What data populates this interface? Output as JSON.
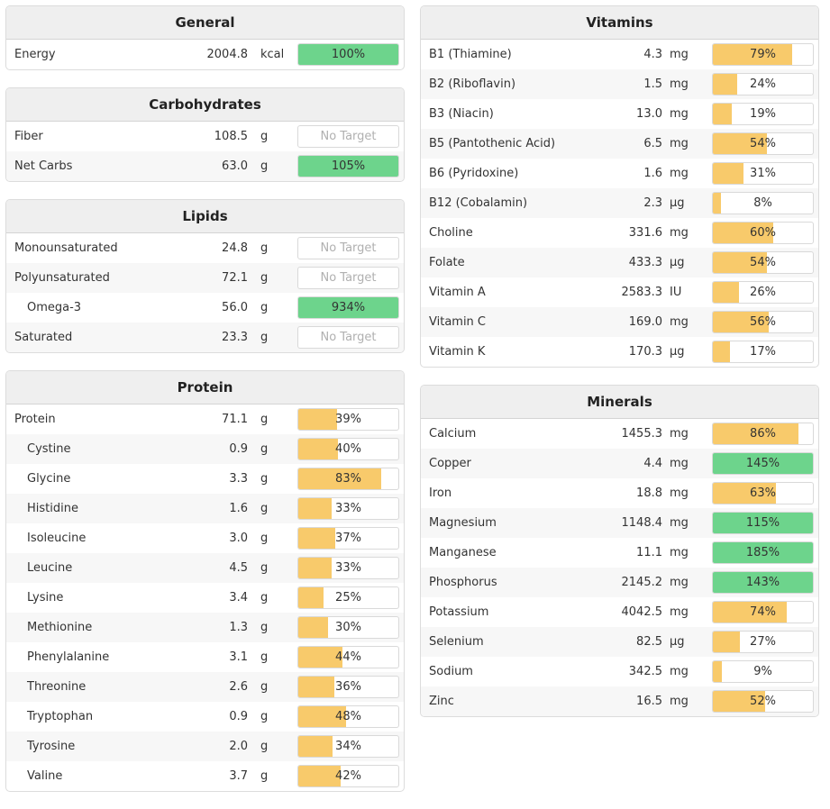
{
  "colors": {
    "partial": "#f8ca6b",
    "full": "#6dd48c"
  },
  "left_panels": [
    {
      "title": "General",
      "rows": [
        {
          "name": "Energy",
          "amount": "2004.8",
          "unit": "kcal",
          "percent": 100,
          "label": "100%"
        }
      ]
    },
    {
      "title": "Carbohydrates",
      "rows": [
        {
          "name": "Fiber",
          "amount": "108.5",
          "unit": "g",
          "percent": null,
          "label": "No Target"
        },
        {
          "name": "Net Carbs",
          "amount": "63.0",
          "unit": "g",
          "percent": 105,
          "label": "105%"
        }
      ]
    },
    {
      "title": "Lipids",
      "rows": [
        {
          "name": "Monounsaturated",
          "amount": "24.8",
          "unit": "g",
          "percent": null,
          "label": "No Target"
        },
        {
          "name": "Polyunsaturated",
          "amount": "72.1",
          "unit": "g",
          "percent": null,
          "label": "No Target"
        },
        {
          "name": "Omega-3",
          "amount": "56.0",
          "unit": "g",
          "percent": 934,
          "label": "934%",
          "sub": true
        },
        {
          "name": "Saturated",
          "amount": "23.3",
          "unit": "g",
          "percent": null,
          "label": "No Target"
        }
      ]
    },
    {
      "title": "Protein",
      "rows": [
        {
          "name": "Protein",
          "amount": "71.1",
          "unit": "g",
          "percent": 39,
          "label": "39%"
        },
        {
          "name": "Cystine",
          "amount": "0.9",
          "unit": "g",
          "percent": 40,
          "label": "40%",
          "sub": true
        },
        {
          "name": "Glycine",
          "amount": "3.3",
          "unit": "g",
          "percent": 83,
          "label": "83%",
          "sub": true
        },
        {
          "name": "Histidine",
          "amount": "1.6",
          "unit": "g",
          "percent": 33,
          "label": "33%",
          "sub": true
        },
        {
          "name": "Isoleucine",
          "amount": "3.0",
          "unit": "g",
          "percent": 37,
          "label": "37%",
          "sub": true
        },
        {
          "name": "Leucine",
          "amount": "4.5",
          "unit": "g",
          "percent": 33,
          "label": "33%",
          "sub": true
        },
        {
          "name": "Lysine",
          "amount": "3.4",
          "unit": "g",
          "percent": 25,
          "label": "25%",
          "sub": true
        },
        {
          "name": "Methionine",
          "amount": "1.3",
          "unit": "g",
          "percent": 30,
          "label": "30%",
          "sub": true
        },
        {
          "name": "Phenylalanine",
          "amount": "3.1",
          "unit": "g",
          "percent": 44,
          "label": "44%",
          "sub": true
        },
        {
          "name": "Threonine",
          "amount": "2.6",
          "unit": "g",
          "percent": 36,
          "label": "36%",
          "sub": true
        },
        {
          "name": "Tryptophan",
          "amount": "0.9",
          "unit": "g",
          "percent": 48,
          "label": "48%",
          "sub": true
        },
        {
          "name": "Tyrosine",
          "amount": "2.0",
          "unit": "g",
          "percent": 34,
          "label": "34%",
          "sub": true
        },
        {
          "name": "Valine",
          "amount": "3.7",
          "unit": "g",
          "percent": 42,
          "label": "42%",
          "sub": true
        }
      ]
    }
  ],
  "right_panels": [
    {
      "title": "Vitamins",
      "rows": [
        {
          "name": "B1 (Thiamine)",
          "amount": "4.3",
          "unit": "mg",
          "percent": 79,
          "label": "79%"
        },
        {
          "name": "B2 (Riboflavin)",
          "amount": "1.5",
          "unit": "mg",
          "percent": 24,
          "label": "24%"
        },
        {
          "name": "B3 (Niacin)",
          "amount": "13.0",
          "unit": "mg",
          "percent": 19,
          "label": "19%"
        },
        {
          "name": "B5 (Pantothenic Acid)",
          "amount": "6.5",
          "unit": "mg",
          "percent": 54,
          "label": "54%"
        },
        {
          "name": "B6 (Pyridoxine)",
          "amount": "1.6",
          "unit": "mg",
          "percent": 31,
          "label": "31%"
        },
        {
          "name": "B12 (Cobalamin)",
          "amount": "2.3",
          "unit": "µg",
          "percent": 8,
          "label": "8%"
        },
        {
          "name": "Choline",
          "amount": "331.6",
          "unit": "mg",
          "percent": 60,
          "label": "60%"
        },
        {
          "name": "Folate",
          "amount": "433.3",
          "unit": "µg",
          "percent": 54,
          "label": "54%"
        },
        {
          "name": "Vitamin A",
          "amount": "2583.3",
          "unit": "IU",
          "percent": 26,
          "label": "26%"
        },
        {
          "name": "Vitamin C",
          "amount": "169.0",
          "unit": "mg",
          "percent": 56,
          "label": "56%"
        },
        {
          "name": "Vitamin K",
          "amount": "170.3",
          "unit": "µg",
          "percent": 17,
          "label": "17%"
        }
      ]
    },
    {
      "title": "Minerals",
      "rows": [
        {
          "name": "Calcium",
          "amount": "1455.3",
          "unit": "mg",
          "percent": 86,
          "label": "86%"
        },
        {
          "name": "Copper",
          "amount": "4.4",
          "unit": "mg",
          "percent": 145,
          "label": "145%"
        },
        {
          "name": "Iron",
          "amount": "18.8",
          "unit": "mg",
          "percent": 63,
          "label": "63%"
        },
        {
          "name": "Magnesium",
          "amount": "1148.4",
          "unit": "mg",
          "percent": 115,
          "label": "115%"
        },
        {
          "name": "Manganese",
          "amount": "11.1",
          "unit": "mg",
          "percent": 185,
          "label": "185%"
        },
        {
          "name": "Phosphorus",
          "amount": "2145.2",
          "unit": "mg",
          "percent": 143,
          "label": "143%"
        },
        {
          "name": "Potassium",
          "amount": "4042.5",
          "unit": "mg",
          "percent": 74,
          "label": "74%"
        },
        {
          "name": "Selenium",
          "amount": "82.5",
          "unit": "µg",
          "percent": 27,
          "label": "27%"
        },
        {
          "name": "Sodium",
          "amount": "342.5",
          "unit": "mg",
          "percent": 9,
          "label": "9%"
        },
        {
          "name": "Zinc",
          "amount": "16.5",
          "unit": "mg",
          "percent": 52,
          "label": "52%"
        }
      ]
    }
  ]
}
